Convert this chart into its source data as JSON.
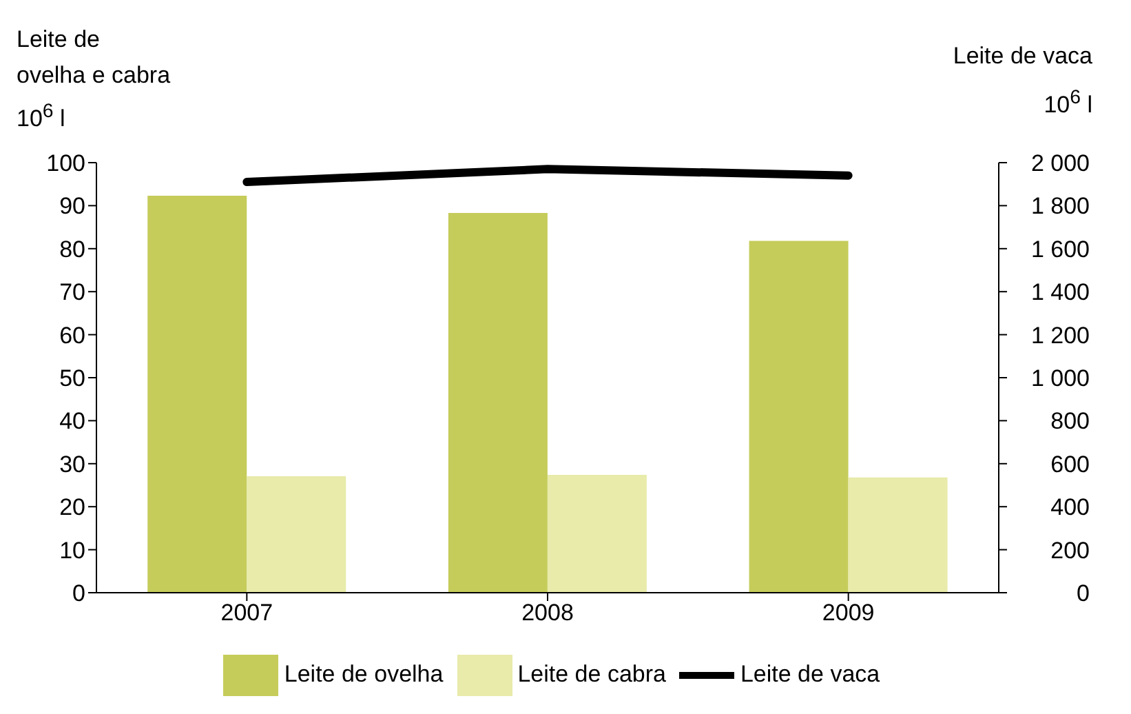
{
  "chart_data": {
    "type": "bar",
    "ylabel": "Leite de\novelha e cabra\n10$^{6}$ l",
    "y2label": "Leite de vaca\n10$^{6}$ l",
    "categories": [
      "2007",
      "2008",
      "2009"
    ],
    "series": [
      {
        "name": "Leite de ovelha",
        "color": "#c5cc5a",
        "values": [
          92.3,
          88.3,
          81.8
        ]
      },
      {
        "name": "Leite de cabra",
        "color": "#e8ebaa",
        "values": [
          27.1,
          27.4,
          26.8
        ]
      },
      {
        "name": "Leite de vaca",
        "type": "line",
        "axis": "y2",
        "color": "#000000",
        "values": [
          1910,
          1970,
          1940
        ]
      }
    ],
    "ylim": [
      0,
      100
    ],
    "yticks": [
      0,
      10,
      20,
      30,
      40,
      50,
      60,
      70,
      80,
      90,
      100
    ],
    "y2lim": [
      0,
      2000
    ],
    "y2ticks": [
      0,
      200,
      400,
      600,
      800,
      {
        "value": 1000,
        "label": "1 000"
      },
      {
        "value": 1200,
        "label": "1 200"
      },
      {
        "value": 1400,
        "label": "1 400"
      },
      {
        "value": 1600,
        "label": "1 600"
      },
      {
        "value": 1800,
        "label": "1 800"
      },
      {
        "value": 2000,
        "label": "2 000"
      }
    ],
    "grid": false,
    "legend": "bottom",
    "marker": "none",
    "line_style": "solid"
  }
}
